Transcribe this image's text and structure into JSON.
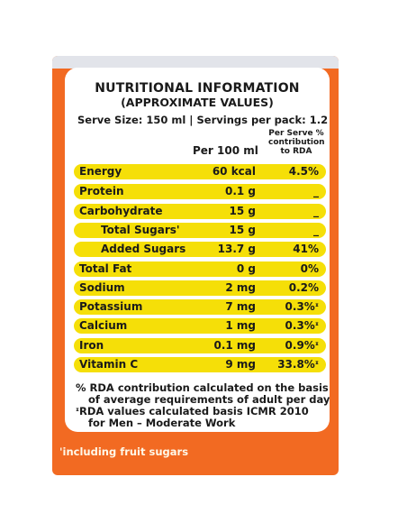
{
  "title": "NUTRITIONAL INFORMATION",
  "subtitle": "(APPROXIMATE VALUES)",
  "serve_info": "Serve Size: 150 ml | Servings per pack: 1.2",
  "col_per100": "Per 100 ml",
  "col_rda": "Per Serve % contribution to RDA",
  "rows": [
    {
      "name": "Energy",
      "value": "60 kcal",
      "rda": "4.5%"
    },
    {
      "name": "Protein",
      "value": "0.1 g",
      "rda": "_"
    },
    {
      "name": "Carbohydrate",
      "value": "15 g",
      "rda": "_"
    },
    {
      "name": "Total Sugars'",
      "value": "15 g",
      "rda": "_"
    },
    {
      "name": "Added Sugars",
      "value": "13.7 g",
      "rda": "41%"
    },
    {
      "name": "Total Fat",
      "value": "0 g",
      "rda": "0%"
    },
    {
      "name": "Sodium",
      "value": "2 mg",
      "rda": "0.2%"
    },
    {
      "name": "Potassium",
      "value": "7 mg",
      "rda": "0.3%ᶦ"
    },
    {
      "name": "Calcium",
      "value": "1 mg",
      "rda": "0.3%ᶦ"
    },
    {
      "name": "Iron",
      "value": "0.1 mg",
      "rda": "0.9%ᶦ"
    },
    {
      "name": "Vitamin C",
      "value": "9 mg",
      "rda": "33.8%ᶦ"
    }
  ],
  "notes": [
    "% RDA contribution calculated on the basis",
    "of average requirements of adult per day",
    "ᶦRDA values calculated basis ICMR 2010",
    "for Men – Moderate  Work"
  ],
  "footnote": "'including fruit sugars",
  "colors": {
    "pack_orange": "#f26a22",
    "row_yellow": "#f5df08"
  }
}
